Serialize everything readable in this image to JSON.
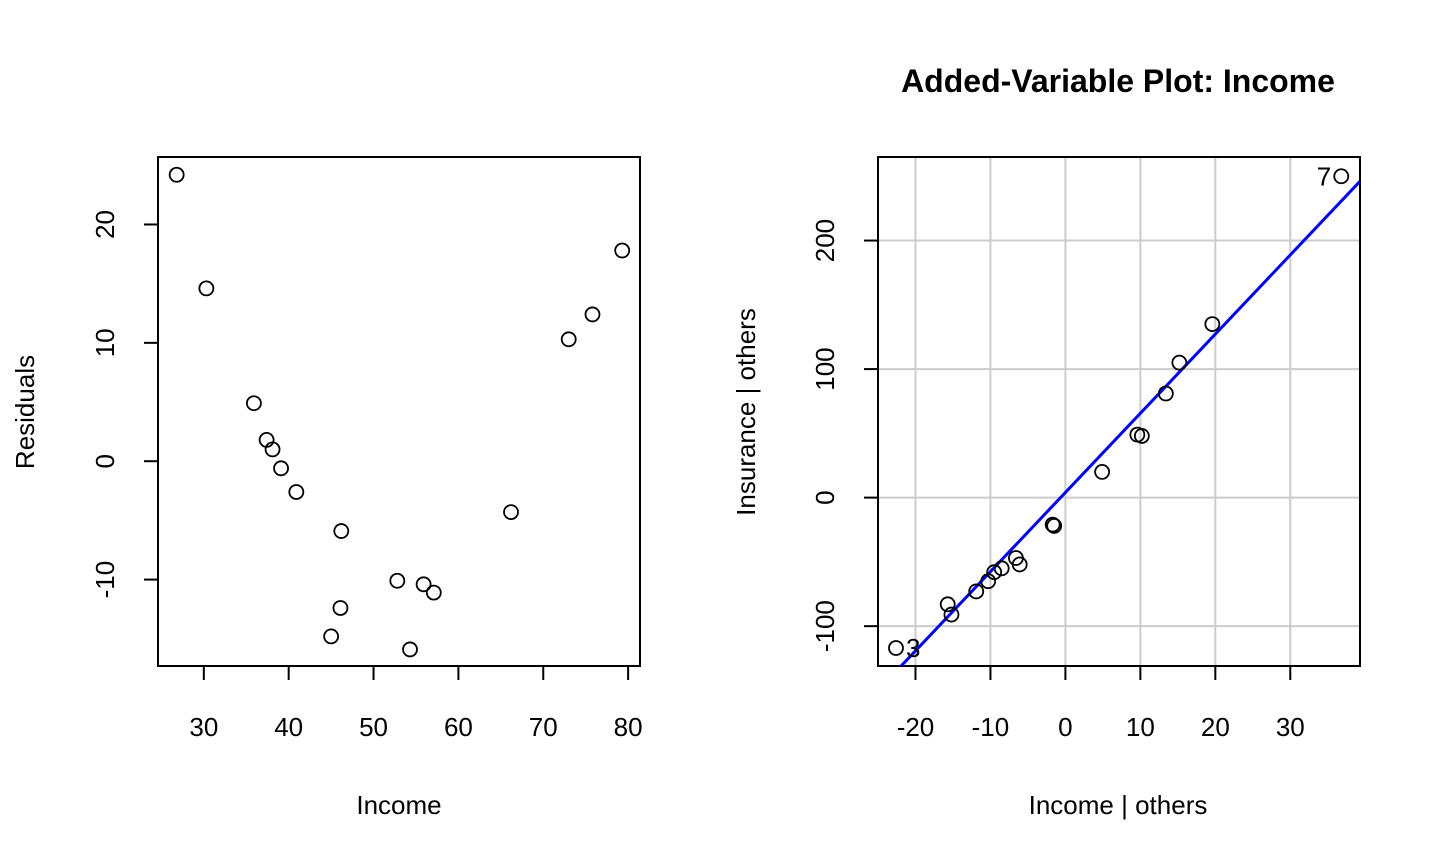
{
  "chart_data": [
    {
      "type": "scatter",
      "title": "",
      "xlabel": "Income",
      "ylabel": "Residuals",
      "xlim": [
        24.6,
        81.4
      ],
      "ylim": [
        -17.3,
        25.7
      ],
      "xticks": [
        30,
        40,
        50,
        60,
        70,
        80
      ],
      "yticks": [
        -10,
        0,
        10,
        20
      ],
      "grid": false,
      "points": [
        {
          "x": 26.8,
          "y": 24.2
        },
        {
          "x": 30.3,
          "y": 14.6
        },
        {
          "x": 35.9,
          "y": 4.9
        },
        {
          "x": 37.4,
          "y": 1.8
        },
        {
          "x": 38.1,
          "y": 1.0
        },
        {
          "x": 39.1,
          "y": -0.6
        },
        {
          "x": 40.9,
          "y": -2.6
        },
        {
          "x": 45.0,
          "y": -14.8
        },
        {
          "x": 46.1,
          "y": -12.4
        },
        {
          "x": 46.2,
          "y": -5.9
        },
        {
          "x": 52.8,
          "y": -10.1
        },
        {
          "x": 54.3,
          "y": -15.9
        },
        {
          "x": 55.9,
          "y": -10.4
        },
        {
          "x": 57.1,
          "y": -11.1
        },
        {
          "x": 66.2,
          "y": -4.3
        },
        {
          "x": 73.0,
          "y": 10.3
        },
        {
          "x": 75.8,
          "y": 12.4
        },
        {
          "x": 79.3,
          "y": 17.8
        }
      ]
    },
    {
      "type": "scatter",
      "title": "Added-Variable Plot: Income",
      "xlabel": "Income | others",
      "ylabel": "Insurance  | others",
      "xlim": [
        -25.0,
        39.3
      ],
      "ylim": [
        -131.0,
        265.0
      ],
      "xticks": [
        -20,
        -10,
        0,
        10,
        20,
        30
      ],
      "yticks": [
        -100,
        0,
        100,
        200
      ],
      "grid": true,
      "fit_line": {
        "intercept": 4.0,
        "slope": 6.16,
        "color": "#0000ff"
      },
      "points": [
        {
          "x": -22.6,
          "y": -117,
          "label": "3"
        },
        {
          "x": -15.7,
          "y": -83
        },
        {
          "x": -15.2,
          "y": -91
        },
        {
          "x": -11.9,
          "y": -73
        },
        {
          "x": -10.3,
          "y": -65
        },
        {
          "x": -9.5,
          "y": -58
        },
        {
          "x": -8.5,
          "y": -55
        },
        {
          "x": -6.6,
          "y": -47
        },
        {
          "x": -6.1,
          "y": -52
        },
        {
          "x": -1.7,
          "y": -21
        },
        {
          "x": -1.5,
          "y": -22
        },
        {
          "x": 4.9,
          "y": 20
        },
        {
          "x": 9.6,
          "y": 49
        },
        {
          "x": 10.2,
          "y": 48
        },
        {
          "x": 13.4,
          "y": 81
        },
        {
          "x": 15.2,
          "y": 105
        },
        {
          "x": 19.6,
          "y": 135
        },
        {
          "x": 36.8,
          "y": 250,
          "label": "7"
        }
      ]
    }
  ]
}
